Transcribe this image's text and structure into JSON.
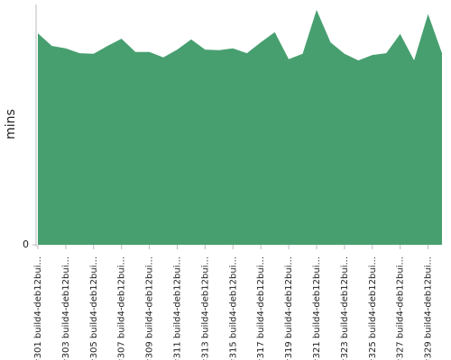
{
  "chart_data": {
    "type": "area",
    "y_label": "mins",
    "color": "#479f6f",
    "categories": [
      "#301 build4-deb12bui...",
      null,
      "#303 build4-deb12bui...",
      null,
      "#305 build4-deb12bui...",
      null,
      "#307 build4-deb12bui...",
      null,
      "#309 build4-deb12bui...",
      null,
      "#311 build4-deb12bui...",
      null,
      "#313 build4-deb12bui...",
      null,
      "#315 build4-deb12bui...",
      null,
      "#317 build4-deb12bui...",
      null,
      "#319 build4-deb12bui...",
      null,
      "#321 build4-deb12bui...",
      null,
      "#323 build4-deb12bui...",
      null,
      "#325 build4-deb12bui...",
      null,
      "#327 build4-deb12bui...",
      null,
      "#329 build4-deb12bui...",
      null
    ],
    "values": [
      35.2,
      33.1,
      32.7,
      31.9,
      31.8,
      33.1,
      34.3,
      32.1,
      32.1,
      31.2,
      32.5,
      34.2,
      32.5,
      32.4,
      32.7,
      31.9,
      33.7,
      35.4,
      30.9,
      31.8,
      39.1,
      33.7,
      31.8,
      30.7,
      31.6,
      31.9,
      35.1,
      30.7,
      38.4,
      31.9
    ],
    "ylim": [
      0,
      40
    ],
    "yticks": [
      0
    ]
  }
}
